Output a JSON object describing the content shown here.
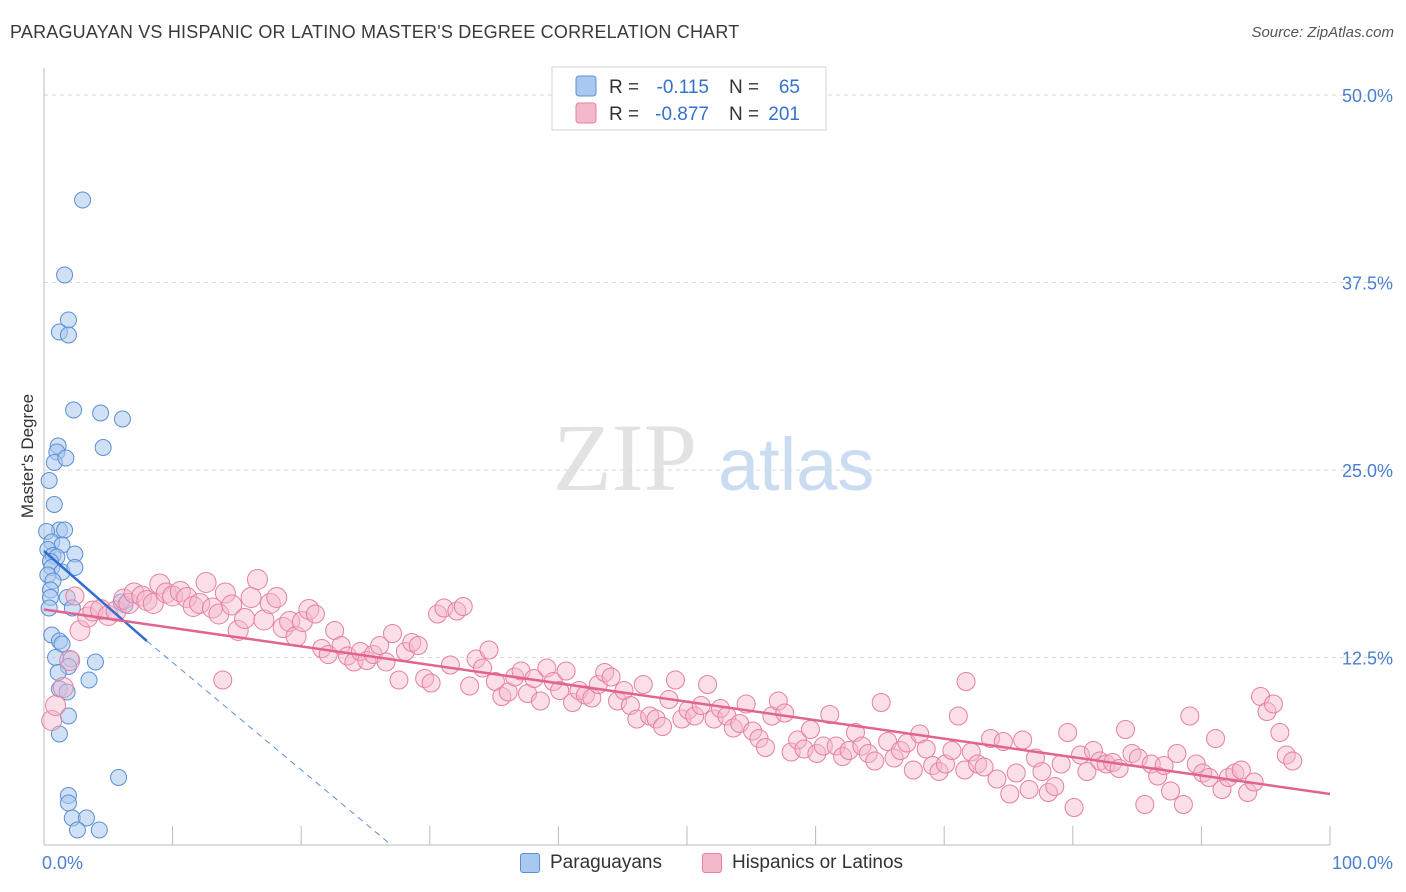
{
  "title": "PARAGUAYAN VS HISPANIC OR LATINO MASTER'S DEGREE CORRELATION CHART",
  "source": "Source: ZipAtlas.com",
  "watermark": {
    "zip": "ZIP",
    "atlas": "atlas"
  },
  "colors": {
    "blue_fill": "#a9c8ef",
    "blue_stroke": "#5b8fd6",
    "blue_line": "#2f6fcf",
    "pink_fill": "#f4b8cb",
    "pink_stroke": "#e77fa2",
    "pink_line": "#e0648e",
    "tick_label": "#4a7fcf",
    "grid": "#d9d9d9"
  },
  "legend_stats": [
    {
      "r_label": "R =",
      "r_value": "-0.115",
      "n_label": "N =",
      "n_value": "65"
    },
    {
      "r_label": "R =",
      "r_value": "-0.877",
      "n_label": "N =",
      "n_value": "201"
    }
  ],
  "chart_data": {
    "type": "scatter",
    "title": "PARAGUAYAN VS HISPANIC OR LATINO MASTER'S DEGREE CORRELATION CHART",
    "xlabel": "",
    "ylabel": "Master's Degree",
    "xlim": [
      0,
      100
    ],
    "ylim": [
      0,
      51
    ],
    "x_tick_labels": [
      "0.0%",
      "100.0%"
    ],
    "y_ticks": [
      12.5,
      25.0,
      37.5,
      50.0
    ],
    "y_tick_labels": [
      "12.5%",
      "25.0%",
      "37.5%",
      "50.0%"
    ],
    "grid": true,
    "legend_position": "top-center",
    "series": [
      {
        "name": "Paraguayans",
        "color": "#5b8fd6",
        "trend": {
          "x": [
            0,
            8
          ],
          "y": [
            19.6,
            13.6
          ],
          "dashed_extension": {
            "x": [
              8,
              27
            ],
            "y": [
              13.6,
              0
            ]
          }
        },
        "points": [
          [
            3.0,
            43.0
          ],
          [
            1.6,
            38.0
          ],
          [
            1.9,
            35.0
          ],
          [
            1.2,
            34.2
          ],
          [
            1.9,
            34.0
          ],
          [
            2.3,
            29.0
          ],
          [
            4.4,
            28.8
          ],
          [
            6.1,
            28.4
          ],
          [
            4.6,
            26.5
          ],
          [
            1.1,
            26.6
          ],
          [
            1.0,
            26.2
          ],
          [
            0.8,
            25.5
          ],
          [
            1.7,
            25.8
          ],
          [
            0.4,
            24.3
          ],
          [
            0.8,
            22.7
          ],
          [
            1.2,
            21.0
          ],
          [
            1.6,
            21.0
          ],
          [
            0.2,
            20.9
          ],
          [
            0.6,
            20.2
          ],
          [
            1.4,
            20.0
          ],
          [
            0.3,
            19.7
          ],
          [
            0.7,
            19.3
          ],
          [
            1.0,
            19.2
          ],
          [
            2.4,
            19.4
          ],
          [
            0.5,
            18.9
          ],
          [
            0.6,
            18.5
          ],
          [
            1.4,
            18.2
          ],
          [
            2.4,
            18.5
          ],
          [
            0.3,
            18.0
          ],
          [
            0.7,
            17.6
          ],
          [
            0.5,
            17.0
          ],
          [
            1.8,
            16.5
          ],
          [
            0.5,
            16.5
          ],
          [
            6.3,
            16.0
          ],
          [
            6.0,
            16.2
          ],
          [
            0.4,
            15.8
          ],
          [
            2.2,
            15.8
          ],
          [
            0.6,
            14.0
          ],
          [
            1.2,
            13.6
          ],
          [
            1.4,
            13.4
          ],
          [
            0.9,
            12.5
          ],
          [
            2.1,
            12.4
          ],
          [
            4.0,
            12.2
          ],
          [
            1.9,
            11.9
          ],
          [
            1.1,
            11.5
          ],
          [
            3.5,
            11.0
          ],
          [
            1.2,
            10.4
          ],
          [
            1.8,
            10.2
          ],
          [
            1.9,
            8.6
          ],
          [
            1.2,
            7.4
          ],
          [
            5.8,
            4.5
          ],
          [
            1.9,
            3.3
          ],
          [
            1.9,
            2.8
          ],
          [
            2.2,
            1.8
          ],
          [
            3.3,
            1.8
          ],
          [
            2.6,
            1.0
          ],
          [
            4.3,
            1.0
          ]
        ]
      },
      {
        "name": "Hispanics or Latinos",
        "color": "#e77fa2",
        "trend": {
          "x": [
            0,
            100
          ],
          "y": [
            15.7,
            3.4
          ]
        },
        "points": [
          [
            0.6,
            8.3
          ],
          [
            0.9,
            9.3
          ],
          [
            1.5,
            10.5
          ],
          [
            2.0,
            12.3
          ],
          [
            2.8,
            14.3
          ],
          [
            3.4,
            15.2
          ],
          [
            3.8,
            15.6
          ],
          [
            4.4,
            15.7
          ],
          [
            5.0,
            15.3
          ],
          [
            5.6,
            15.6
          ],
          [
            6.2,
            16.4
          ],
          [
            6.6,
            16.1
          ],
          [
            7.0,
            16.8
          ],
          [
            7.6,
            16.6
          ],
          [
            8.0,
            16.3
          ],
          [
            8.5,
            16.1
          ],
          [
            9.0,
            17.4
          ],
          [
            9.5,
            16.8
          ],
          [
            10.0,
            16.6
          ],
          [
            10.6,
            16.9
          ],
          [
            11.1,
            16.5
          ],
          [
            11.6,
            15.9
          ],
          [
            12.1,
            16.1
          ],
          [
            12.6,
            17.5
          ],
          [
            13.1,
            15.8
          ],
          [
            13.6,
            15.4
          ],
          [
            14.1,
            16.8
          ],
          [
            14.6,
            16.0
          ],
          [
            15.1,
            14.3
          ],
          [
            15.6,
            15.1
          ],
          [
            16.1,
            16.5
          ],
          [
            16.6,
            17.7
          ],
          [
            17.1,
            15.0
          ],
          [
            17.6,
            16.1
          ],
          [
            18.1,
            16.5
          ],
          [
            18.6,
            14.5
          ],
          [
            19.1,
            14.9
          ],
          [
            19.6,
            13.9
          ],
          [
            20.1,
            14.9
          ],
          [
            20.6,
            15.7
          ],
          [
            21.1,
            15.4
          ],
          [
            21.6,
            13.1
          ],
          [
            22.1,
            12.7
          ],
          [
            22.6,
            14.3
          ],
          [
            23.1,
            13.3
          ],
          [
            23.6,
            12.6
          ],
          [
            24.1,
            12.2
          ],
          [
            24.6,
            12.9
          ],
          [
            25.1,
            12.3
          ],
          [
            25.6,
            12.7
          ],
          [
            26.1,
            13.3
          ],
          [
            26.6,
            12.2
          ],
          [
            27.1,
            14.1
          ],
          [
            27.6,
            11.0
          ],
          [
            28.1,
            12.9
          ],
          [
            28.6,
            13.5
          ],
          [
            29.1,
            13.3
          ],
          [
            29.6,
            11.1
          ],
          [
            30.1,
            10.8
          ],
          [
            30.6,
            15.4
          ],
          [
            31.1,
            15.8
          ],
          [
            31.6,
            12.0
          ],
          [
            32.1,
            15.6
          ],
          [
            32.6,
            15.9
          ],
          [
            33.1,
            10.6
          ],
          [
            33.6,
            12.4
          ],
          [
            34.1,
            11.8
          ],
          [
            34.6,
            13.0
          ],
          [
            35.1,
            10.9
          ],
          [
            35.6,
            9.9
          ],
          [
            36.1,
            10.2
          ],
          [
            36.6,
            11.2
          ],
          [
            37.1,
            11.6
          ],
          [
            37.6,
            10.1
          ],
          [
            38.1,
            11.1
          ],
          [
            38.6,
            9.6
          ],
          [
            39.1,
            11.8
          ],
          [
            39.6,
            10.9
          ],
          [
            40.1,
            10.3
          ],
          [
            40.6,
            11.6
          ],
          [
            41.1,
            9.5
          ],
          [
            41.6,
            10.3
          ],
          [
            42.1,
            10.0
          ],
          [
            42.6,
            9.8
          ],
          [
            43.1,
            10.7
          ],
          [
            43.6,
            11.5
          ],
          [
            44.1,
            11.2
          ],
          [
            44.6,
            9.6
          ],
          [
            45.1,
            10.3
          ],
          [
            45.6,
            9.3
          ],
          [
            46.1,
            8.4
          ],
          [
            46.6,
            10.7
          ],
          [
            47.1,
            8.6
          ],
          [
            47.6,
            8.4
          ],
          [
            48.1,
            7.9
          ],
          [
            48.6,
            9.7
          ],
          [
            49.1,
            11.0
          ],
          [
            49.6,
            8.4
          ],
          [
            50.1,
            9.0
          ],
          [
            50.6,
            8.6
          ],
          [
            51.1,
            9.3
          ],
          [
            51.6,
            10.7
          ],
          [
            52.1,
            8.4
          ],
          [
            52.6,
            9.1
          ],
          [
            53.1,
            8.6
          ],
          [
            53.6,
            7.8
          ],
          [
            54.1,
            8.1
          ],
          [
            54.6,
            9.4
          ],
          [
            55.1,
            7.6
          ],
          [
            55.6,
            7.1
          ],
          [
            56.1,
            6.5
          ],
          [
            56.6,
            8.6
          ],
          [
            57.1,
            9.6
          ],
          [
            57.6,
            8.8
          ],
          [
            58.1,
            6.2
          ],
          [
            58.6,
            7.0
          ],
          [
            59.1,
            6.4
          ],
          [
            59.6,
            7.7
          ],
          [
            60.1,
            6.1
          ],
          [
            60.6,
            6.6
          ],
          [
            61.1,
            8.7
          ],
          [
            61.6,
            6.6
          ],
          [
            62.1,
            5.9
          ],
          [
            62.6,
            6.3
          ],
          [
            63.1,
            7.5
          ],
          [
            63.6,
            6.6
          ],
          [
            64.1,
            6.1
          ],
          [
            64.6,
            5.6
          ],
          [
            65.1,
            9.5
          ],
          [
            65.6,
            6.9
          ],
          [
            66.1,
            5.8
          ],
          [
            66.6,
            6.3
          ],
          [
            67.1,
            6.8
          ],
          [
            67.6,
            5.0
          ],
          [
            68.1,
            7.4
          ],
          [
            68.6,
            6.4
          ],
          [
            69.1,
            5.3
          ],
          [
            69.6,
            4.9
          ],
          [
            70.1,
            5.4
          ],
          [
            70.6,
            6.3
          ],
          [
            71.1,
            8.6
          ],
          [
            71.6,
            5.0
          ],
          [
            72.1,
            6.2
          ],
          [
            72.6,
            5.4
          ],
          [
            73.1,
            5.2
          ],
          [
            73.6,
            7.1
          ],
          [
            74.1,
            4.4
          ],
          [
            74.6,
            6.9
          ],
          [
            75.1,
            3.4
          ],
          [
            75.6,
            4.8
          ],
          [
            76.1,
            7.0
          ],
          [
            76.6,
            3.7
          ],
          [
            77.1,
            5.8
          ],
          [
            77.6,
            4.9
          ],
          [
            78.1,
            3.5
          ],
          [
            78.6,
            3.9
          ],
          [
            79.1,
            5.4
          ],
          [
            79.6,
            7.5
          ],
          [
            80.1,
            2.5
          ],
          [
            80.6,
            6.0
          ],
          [
            81.1,
            4.9
          ],
          [
            81.6,
            6.3
          ],
          [
            82.1,
            5.6
          ],
          [
            82.6,
            5.4
          ],
          [
            83.1,
            5.5
          ],
          [
            83.6,
            5.1
          ],
          [
            84.1,
            7.7
          ],
          [
            84.6,
            6.1
          ],
          [
            85.1,
            5.8
          ],
          [
            85.6,
            2.7
          ],
          [
            86.1,
            5.4
          ],
          [
            86.6,
            4.6
          ],
          [
            87.1,
            5.3
          ],
          [
            87.6,
            3.6
          ],
          [
            88.1,
            6.1
          ],
          [
            88.6,
            2.7
          ],
          [
            89.1,
            8.6
          ],
          [
            89.6,
            5.4
          ],
          [
            90.1,
            4.8
          ],
          [
            90.6,
            4.5
          ],
          [
            91.1,
            7.1
          ],
          [
            91.6,
            3.7
          ],
          [
            92.1,
            4.5
          ],
          [
            92.6,
            4.8
          ],
          [
            93.1,
            5.0
          ],
          [
            93.6,
            3.5
          ],
          [
            94.1,
            4.2
          ],
          [
            94.6,
            9.9
          ],
          [
            95.1,
            8.9
          ],
          [
            95.6,
            9.4
          ],
          [
            96.1,
            7.5
          ],
          [
            96.6,
            6.0
          ],
          [
            97.1,
            5.6
          ],
          [
            71.7,
            10.9
          ],
          [
            13.9,
            11.0
          ],
          [
            2.4,
            16.6
          ]
        ]
      }
    ]
  },
  "bottom_legend": [
    "Paraguayans",
    "Hispanics or Latinos"
  ]
}
